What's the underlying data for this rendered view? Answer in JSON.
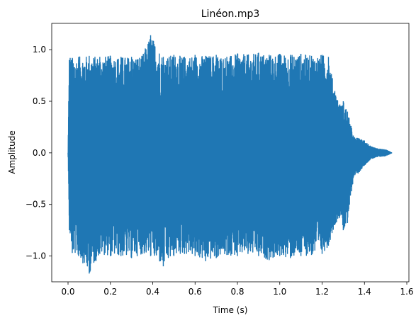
{
  "chart_data": {
    "type": "line",
    "title": "Linéon.mp3",
    "xlabel": "Time (s)",
    "ylabel": "Amplitude",
    "xlim": [
      -0.077,
      1.61
    ],
    "ylim": [
      -1.25,
      1.255
    ],
    "xticks": [
      0.0,
      0.2,
      0.4,
      0.6,
      0.8,
      1.0,
      1.2,
      1.4,
      1.6
    ],
    "xtick_labels": [
      "0.0",
      "0.2",
      "0.4",
      "0.6",
      "0.8",
      "1.0",
      "1.2",
      "1.4",
      "1.6"
    ],
    "yticks": [
      -1.0,
      -0.5,
      0.0,
      0.5,
      1.0
    ],
    "ytick_labels": [
      "−1.0",
      "−0.5",
      "0.0",
      "0.5",
      "1.0"
    ],
    "grid": false,
    "legend": "none",
    "series": [
      {
        "color": "#1f77b4",
        "x": [
          0.0,
          0.003,
          0.006,
          0.01,
          0.02,
          0.05,
          0.1,
          0.15,
          0.2,
          0.25,
          0.3,
          0.35,
          0.39,
          0.45,
          0.5,
          0.55,
          0.6,
          0.65,
          0.7,
          0.75,
          0.8,
          0.85,
          0.9,
          0.95,
          1.0,
          1.05,
          1.1,
          1.15,
          1.2,
          1.23,
          1.26,
          1.29,
          1.3,
          1.32,
          1.35,
          1.37,
          1.4,
          1.43,
          1.46,
          1.5,
          1.53
        ],
        "env_max": [
          0.0,
          0.5,
          0.9,
          0.92,
          0.92,
          0.93,
          0.94,
          0.93,
          0.94,
          0.93,
          0.93,
          0.94,
          1.14,
          0.93,
          0.95,
          0.93,
          0.95,
          0.94,
          0.95,
          0.93,
          0.96,
          0.95,
          0.97,
          0.95,
          0.96,
          0.95,
          0.96,
          0.94,
          0.95,
          0.93,
          0.6,
          0.45,
          0.5,
          0.4,
          0.15,
          0.14,
          0.12,
          0.06,
          0.04,
          0.03,
          0.0
        ],
        "env_min": [
          0.0,
          -0.3,
          -0.75,
          -0.78,
          -0.97,
          -1.0,
          -1.17,
          -0.98,
          -1.0,
          -1.0,
          -1.02,
          -0.98,
          -1.0,
          -1.1,
          -1.0,
          -0.98,
          -1.0,
          -1.05,
          -1.02,
          -0.99,
          -1.0,
          -0.98,
          -1.0,
          -1.04,
          -1.0,
          -1.02,
          -1.0,
          -0.99,
          -0.98,
          -0.9,
          -0.7,
          -0.6,
          -0.75,
          -0.68,
          -0.22,
          -0.2,
          -0.12,
          -0.06,
          -0.04,
          -0.03,
          0.0
        ]
      }
    ]
  }
}
